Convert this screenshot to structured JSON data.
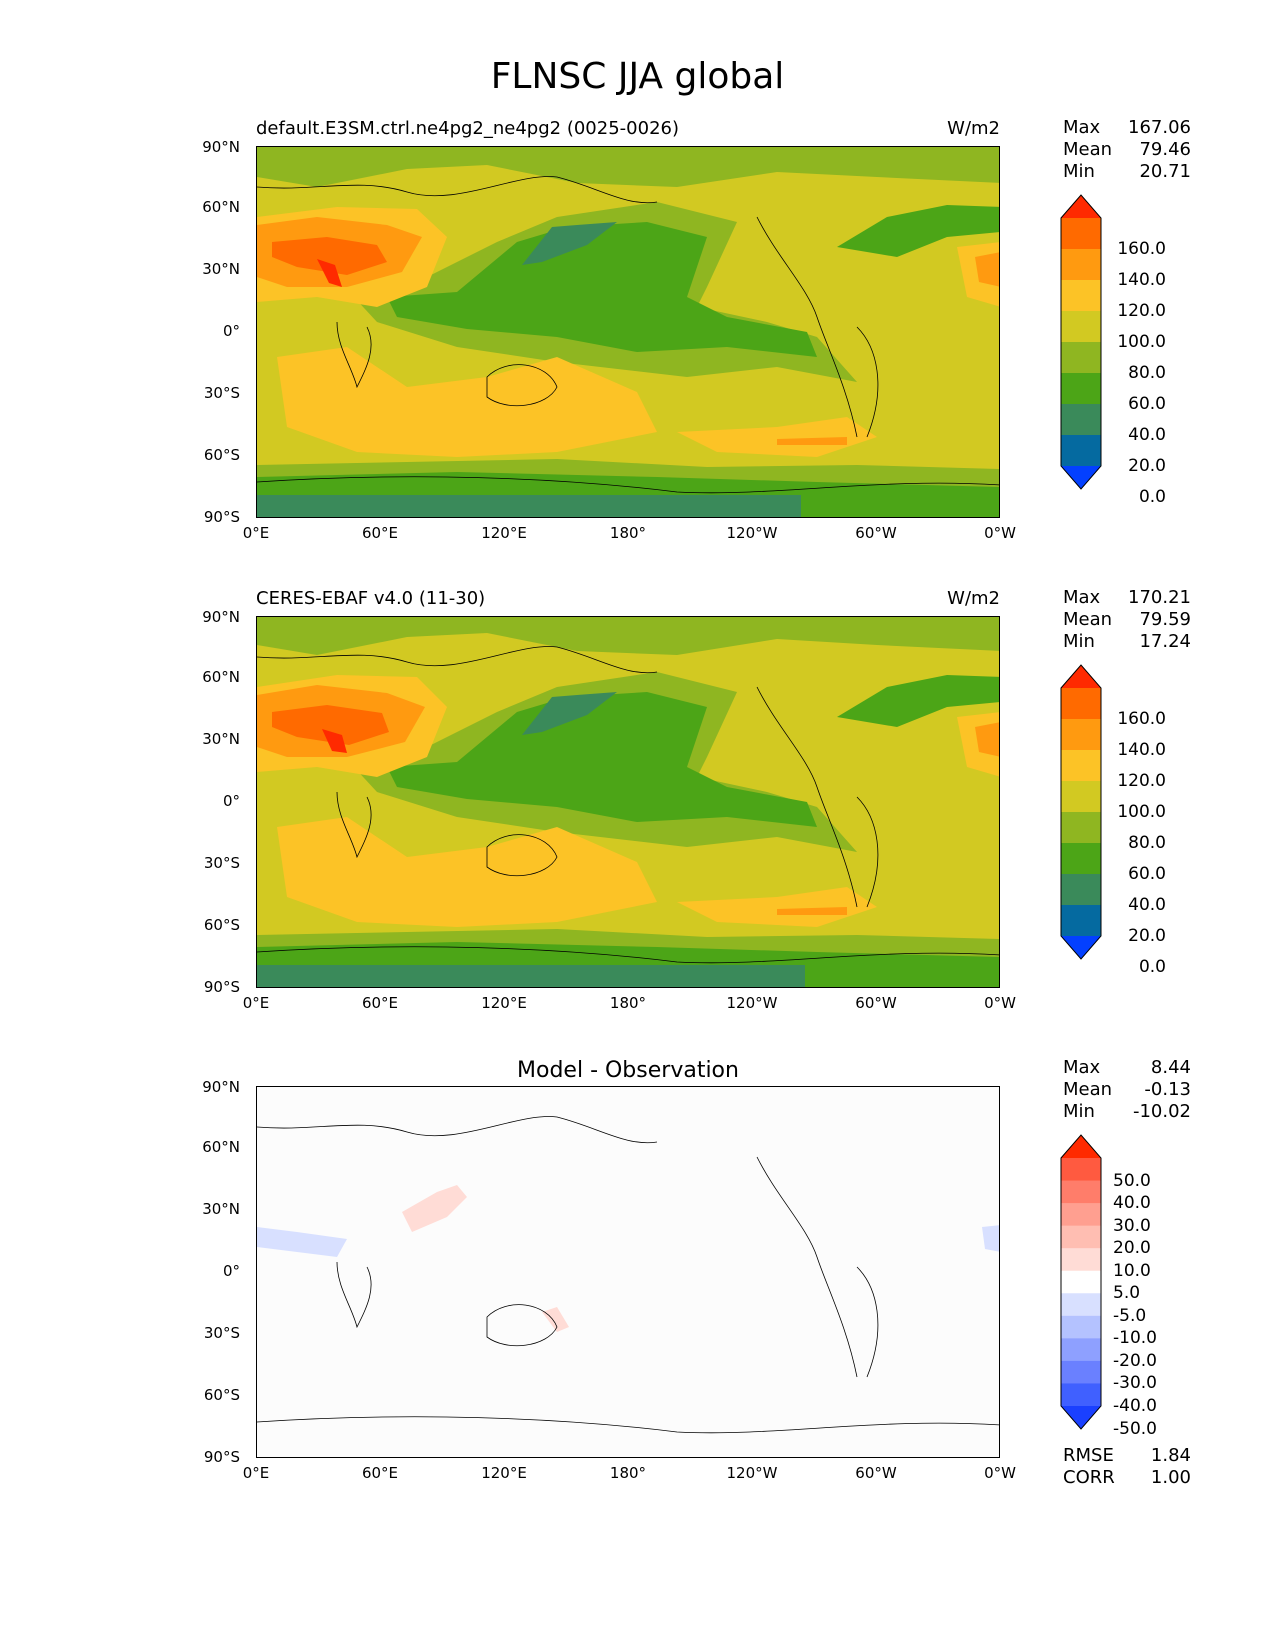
{
  "title": "FLNSC JJA global",
  "units": "W/m2",
  "lat_ticks": [
    "90°N",
    "60°N",
    "30°N",
    "0°",
    "30°S",
    "60°S",
    "90°S"
  ],
  "lon_ticks": [
    "0°E",
    "60°E",
    "120°E",
    "180°",
    "120°W",
    "60°W",
    "0°W"
  ],
  "panels": [
    {
      "title": "default.E3SM.ctrl.ne4pg2_ne4pg2 (0025-0026)",
      "units": "W/m2",
      "stats": {
        "max_label": "Max",
        "max": "167.06",
        "mean_label": "Mean",
        "mean": "79.46",
        "min_label": "Min",
        "min": "20.71"
      }
    },
    {
      "title": "CERES-EBAF v4.0 (11-30)",
      "units": "W/m2",
      "stats": {
        "max_label": "Max",
        "max": "170.21",
        "mean_label": "Mean",
        "mean": "79.59",
        "min_label": "Min",
        "min": "17.24"
      }
    },
    {
      "title": "Model - Observation",
      "stats": {
        "max_label": "Max",
        "max": "8.44",
        "mean_label": "Mean",
        "mean": "-0.13",
        "min_label": "Min",
        "min": "-10.02"
      },
      "rmse_label": "RMSE",
      "rmse": "1.84",
      "corr_label": "CORR",
      "corr": "1.00"
    }
  ],
  "colorbar_main": {
    "labels": [
      "160.0",
      "140.0",
      "120.0",
      "100.0",
      "80.0",
      "60.0",
      "40.0",
      "20.0",
      "0.0"
    ],
    "colors": [
      "#ff2a00",
      "#ff6a00",
      "#ff9a10",
      "#fcc326",
      "#d2c922",
      "#8fb621",
      "#4ca517",
      "#3a8a5a",
      "#056aa0",
      "#0340ff"
    ]
  },
  "colorbar_diff": {
    "labels": [
      "50.0",
      "40.0",
      "30.0",
      "20.0",
      "10.0",
      "5.0",
      "-5.0",
      "-10.0",
      "-20.0",
      "-30.0",
      "-40.0",
      "-50.0"
    ],
    "colors": [
      "#ff2a00",
      "#ff5a40",
      "#ff7d6a",
      "#ff9f90",
      "#ffbeb2",
      "#ffdcd6",
      "#ffffff",
      "#d8e0ff",
      "#b4c2ff",
      "#8ea0ff",
      "#6a80ff",
      "#4060ff",
      "#1a40ff"
    ]
  },
  "chart_data": [
    {
      "type": "heatmap",
      "title": "default.E3SM.ctrl.ne4pg2_ne4pg2 (0025-0026)",
      "units": "W/m2",
      "xlim": [
        0,
        360
      ],
      "ylim": [
        -90,
        90
      ],
      "levels": [
        0,
        20,
        40,
        60,
        80,
        100,
        120,
        140,
        160
      ],
      "max": 167.06,
      "mean": 79.46,
      "min": 20.71
    },
    {
      "type": "heatmap",
      "title": "CERES-EBAF v4.0 (11-30)",
      "units": "W/m2",
      "xlim": [
        0,
        360
      ],
      "ylim": [
        -90,
        90
      ],
      "levels": [
        0,
        20,
        40,
        60,
        80,
        100,
        120,
        140,
        160
      ],
      "max": 170.21,
      "mean": 79.59,
      "min": 17.24
    },
    {
      "type": "heatmap",
      "title": "Model - Observation",
      "xlim": [
        0,
        360
      ],
      "ylim": [
        -90,
        90
      ],
      "levels": [
        -50,
        -40,
        -30,
        -20,
        -10,
        -5,
        5,
        10,
        20,
        30,
        40,
        50
      ],
      "max": 8.44,
      "mean": -0.13,
      "min": -10.02,
      "rmse": 1.84,
      "corr": 1.0
    }
  ]
}
